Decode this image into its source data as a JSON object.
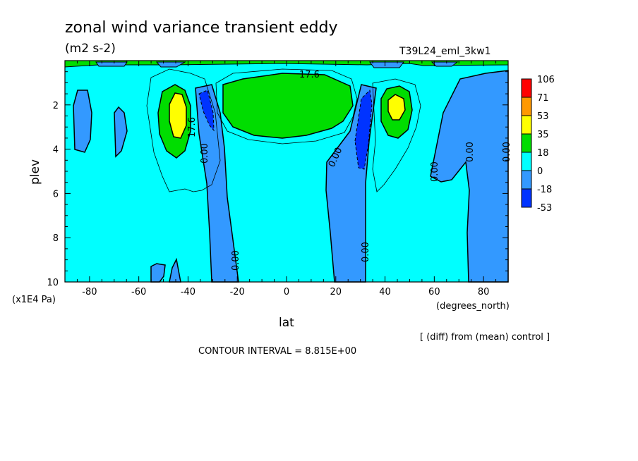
{
  "chart_data": {
    "type": "contour",
    "title": "zonal wind variance transient eddy",
    "units": "(m2 s-2)",
    "run_label": "T39L24_eml_3kw1",
    "xlabel": "lat",
    "xunits": "(degrees_north)",
    "ylabel": "plev",
    "yunits": "(x1E4 Pa)",
    "xlim": [
      -90,
      90
    ],
    "ylim": [
      10,
      0
    ],
    "x_ticks": [
      -80,
      -60,
      -40,
      -20,
      0,
      20,
      40,
      60,
      80
    ],
    "x_tick_labels": [
      "-80",
      "-60",
      "-40",
      "-20",
      "0",
      "20",
      "40",
      "60",
      "80"
    ],
    "y_ticks": [
      2,
      4,
      6,
      8,
      10
    ],
    "y_tick_labels": [
      "2",
      "4",
      "6",
      "8",
      "10"
    ],
    "contour_interval_text": "CONTOUR INTERVAL = 8.815E+00",
    "diff_note": "[ (diff) from (mean) control ]",
    "contour_labels": [
      "17.6",
      "17.6",
      "0.00",
      "0.00",
      "0.00",
      "0.00",
      "0.00",
      "0.00",
      "0.00"
    ],
    "levels": [
      {
        "label": "106",
        "color": "#ff0000"
      },
      {
        "label": "71",
        "color": "#ff9900"
      },
      {
        "label": "53",
        "color": "#ffff00"
      },
      {
        "label": "35",
        "color": "#00dd00"
      },
      {
        "label": "18",
        "color": "#00ffff"
      },
      {
        "label": "0",
        "color": "#00ffff"
      },
      {
        "label": "-18",
        "color": "#3399ff"
      },
      {
        "label": "-53",
        "color": "#0033ff"
      }
    ],
    "colorbar_colors": [
      "#ff0000",
      "#ff9900",
      "#ffff00",
      "#00dd00",
      "#00ffff",
      "#3399ff",
      "#0033ff"
    ],
    "regions": [
      {
        "name": "jet-sh-high",
        "lat": [
          -50,
          -36
        ],
        "plev": [
          1,
          4.5
        ],
        "min_value": 18,
        "peak_value": 53
      },
      {
        "name": "jet-nh-high",
        "lat": [
          36,
          50
        ],
        "plev": [
          1,
          3.5
        ],
        "min_value": 18,
        "peak_value": 53
      },
      {
        "name": "equatorial-high",
        "lat": [
          -26,
          26
        ],
        "plev": [
          0.5,
          3.3
        ],
        "min_value": 18
      },
      {
        "name": "sh-negative-band",
        "lat": [
          -36,
          -18
        ],
        "plev": [
          1,
          10
        ],
        "max_value": 0,
        "peak_value": -53
      },
      {
        "name": "nh-negative-band",
        "lat": [
          16,
          40
        ],
        "plev": [
          1,
          10
        ],
        "max_value": 0,
        "peak_value": -53
      },
      {
        "name": "nh-polar-negative",
        "lat": [
          60,
          90
        ],
        "plev": [
          0.5,
          10
        ],
        "max_value": 0
      }
    ]
  }
}
